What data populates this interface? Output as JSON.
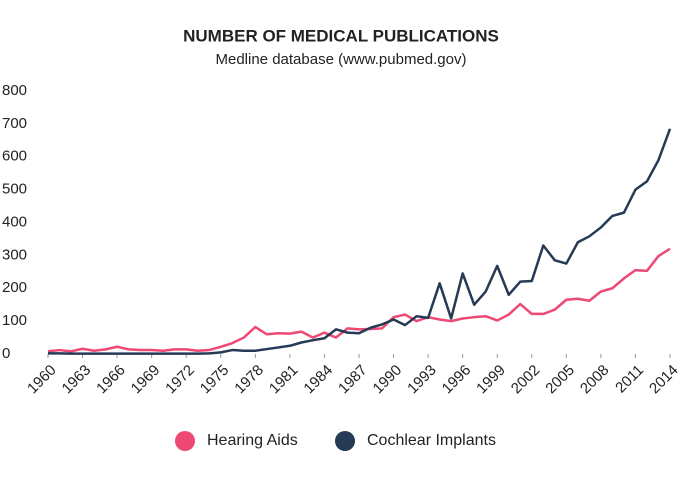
{
  "chart_data": {
    "type": "line",
    "title": "NUMBER OF MEDICAL PUBLICATIONS",
    "subtitle": "Medline database (www.pubmed.gov)",
    "x": [
      1960,
      1961,
      1962,
      1963,
      1964,
      1965,
      1966,
      1967,
      1968,
      1969,
      1970,
      1971,
      1972,
      1973,
      1974,
      1975,
      1976,
      1977,
      1978,
      1979,
      1980,
      1981,
      1982,
      1983,
      1984,
      1985,
      1986,
      1987,
      1988,
      1989,
      1990,
      1991,
      1992,
      1993,
      1994,
      1995,
      1996,
      1997,
      1998,
      1999,
      2000,
      2001,
      2002,
      2003,
      2004,
      2005,
      2006,
      2007,
      2008,
      2009,
      2010,
      2011,
      2012,
      2013,
      2014
    ],
    "series": [
      {
        "name": "Hearing Aids",
        "color": "#ee4874",
        "values": [
          8,
          12,
          8,
          16,
          10,
          14,
          22,
          14,
          12,
          12,
          10,
          14,
          14,
          10,
          12,
          22,
          33,
          50,
          82,
          60,
          63,
          62,
          68,
          50,
          65,
          50,
          78,
          75,
          76,
          78,
          112,
          120,
          100,
          112,
          105,
          100,
          108,
          112,
          115,
          102,
          120,
          152,
          122,
          122,
          135,
          165,
          168,
          162,
          190,
          200,
          230,
          255,
          253,
          298,
          320
        ]
      },
      {
        "name": "Cochlear Implants",
        "color": "#253a54",
        "values": [
          2,
          2,
          1,
          1,
          1,
          1,
          1,
          1,
          1,
          1,
          1,
          1,
          1,
          1,
          2,
          5,
          12,
          10,
          10,
          15,
          20,
          25,
          35,
          42,
          48,
          75,
          65,
          63,
          80,
          90,
          105,
          88,
          115,
          110,
          215,
          108,
          245,
          150,
          190,
          268,
          180,
          220,
          222,
          330,
          285,
          275,
          340,
          358,
          385,
          420,
          430,
          500,
          525,
          590,
          685
        ]
      }
    ],
    "xlim": [
      1960,
      2014
    ],
    "xticks": [
      1960,
      1963,
      1966,
      1969,
      1972,
      1975,
      1978,
      1981,
      1984,
      1987,
      1990,
      1993,
      1996,
      1999,
      2002,
      2005,
      2008,
      2011,
      2014
    ],
    "ylim": [
      0,
      800
    ],
    "yticks": [
      0,
      100,
      200,
      300,
      400,
      500,
      600,
      700,
      800
    ],
    "legend": "bottom"
  }
}
